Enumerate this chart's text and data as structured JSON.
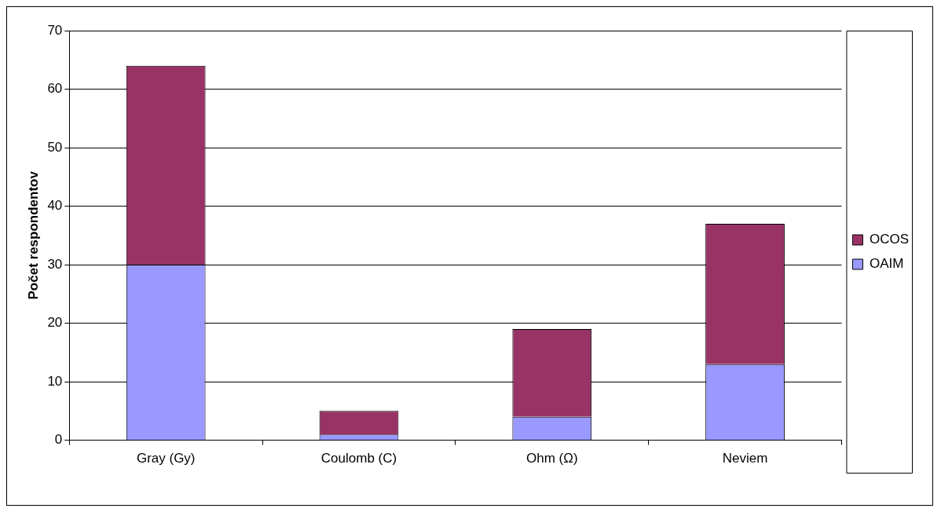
{
  "chart_data": {
    "type": "bar",
    "ylabel": "Počet respondentov",
    "categories": [
      "Gray (Gy)",
      "Coulomb (C)",
      "Ohm (Ω)",
      "Neviem"
    ],
    "stacked": true,
    "series": [
      {
        "name": "OAIM",
        "color": "#9999ff",
        "values": [
          30,
          1,
          4,
          13
        ]
      },
      {
        "name": "OCOS",
        "color": "#993366",
        "values": [
          34,
          4,
          15,
          24
        ]
      }
    ],
    "ylim": [
      0,
      70
    ],
    "yticks": [
      0,
      10,
      20,
      30,
      40,
      50,
      60,
      70
    ],
    "grid": "y",
    "legend": "right"
  }
}
